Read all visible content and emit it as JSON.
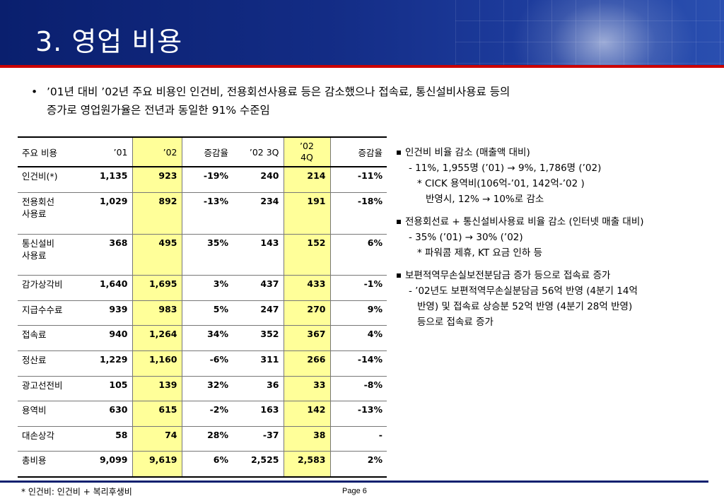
{
  "header": {
    "title": "3. 영업 비용"
  },
  "intro": {
    "bullet": "•",
    "line1": "’01년 대비 ’02년 주요 비용인 인건비, 전용회선사용료 등은 감소했으나  접속료, 통신설비사용료 등의",
    "line2": "증가로 영업원가율은 전년과 동일한 91% 수준임"
  },
  "table": {
    "headers": [
      "주요 비용",
      "’01",
      "’02",
      "증감율",
      "’02 3Q",
      "’02\n4Q",
      "증감율"
    ],
    "rows": [
      {
        "name": "인건비(*)",
        "v01": "1,135",
        "v02": "923",
        "chg": "-19%",
        "q3": "240",
        "q4": "214",
        "qchg": "-11%"
      },
      {
        "name": "전용회선\n사용료",
        "v01": "1,029",
        "v02": "892",
        "chg": "-13%",
        "q3": "234",
        "q4": "191",
        "qchg": "-18%"
      },
      {
        "name": "통신설비\n사용료",
        "v01": "368",
        "v02": "495",
        "chg": "35%",
        "q3": "143",
        "q4": "152",
        "qchg": "6%"
      },
      {
        "name": "감가상각비",
        "v01": "1,640",
        "v02": "1,695",
        "chg": "3%",
        "q3": "437",
        "q4": "433",
        "qchg": "-1%"
      },
      {
        "name": "지급수수료",
        "v01": "939",
        "v02": "983",
        "chg": "5%",
        "q3": "247",
        "q4": "270",
        "qchg": "9%"
      },
      {
        "name": "접속료",
        "v01": "940",
        "v02": "1,264",
        "chg": "34%",
        "q3": "352",
        "q4": "367",
        "qchg": "4%"
      },
      {
        "name": "정산료",
        "v01": "1,229",
        "v02": "1,160",
        "chg": "-6%",
        "q3": "311",
        "q4": "266",
        "qchg": "-14%"
      },
      {
        "name": "광고선전비",
        "v01": "105",
        "v02": "139",
        "chg": "32%",
        "q3": "36",
        "q4": "33",
        "qchg": "-8%"
      },
      {
        "name": "용역비",
        "v01": "630",
        "v02": "615",
        "chg": "-2%",
        "q3": "163",
        "q4": "142",
        "qchg": "-13%"
      },
      {
        "name": "대손상각",
        "v01": "58",
        "v02": "74",
        "chg": "28%",
        "q3": "-37",
        "q4": "38",
        "qchg": "-"
      },
      {
        "name": "총비용",
        "v01": "9,099",
        "v02": "9,619",
        "chg": "6%",
        "q3": "2,525",
        "q4": "2,583",
        "qchg": "2%"
      }
    ]
  },
  "notes": [
    {
      "head": "인건비 비율 감소 (매출액 대비)",
      "lines": [
        {
          "level": 1,
          "text": "- 11%, 1,955명 (’01) → 9%, 1,786명 (’02)"
        },
        {
          "level": 2,
          "text": "* CICK 용역비(106억-’01, 142억-’02 )"
        },
        {
          "level": 3,
          "text": "반영시, 12% → 10%로 감소"
        }
      ]
    },
    {
      "head": "전용회선료 + 통신설비사용료 비율 감소 (인터넷 매출 대비)",
      "lines": [
        {
          "level": 1,
          "text": "- 35% (’01) → 30% (’02)"
        },
        {
          "level": 2,
          "text": "* 파워콤 제휴, KT 요금 인하 등"
        }
      ]
    },
    {
      "head": "보편적역무손실보전분담금 증가 등으로 접속료 증가",
      "lines": [
        {
          "level": 1,
          "text": "- ’02년도 보편적역무손실분담금 56억 반영 (4분기 14억"
        },
        {
          "level": 2,
          "text": "반영) 및 접속료 상승분 52억 반영 (4분기 28억 반영)"
        },
        {
          "level": 2,
          "text": "등으로 접속료 증가"
        }
      ]
    }
  ],
  "footer": {
    "footnote": "* 인건비: 인건비 + 복리후생비",
    "page": "Page 6"
  },
  "colors": {
    "header_blue": "#0a1f6e",
    "accent_red": "#cc0000",
    "highlight_yellow": "#ffff99"
  }
}
